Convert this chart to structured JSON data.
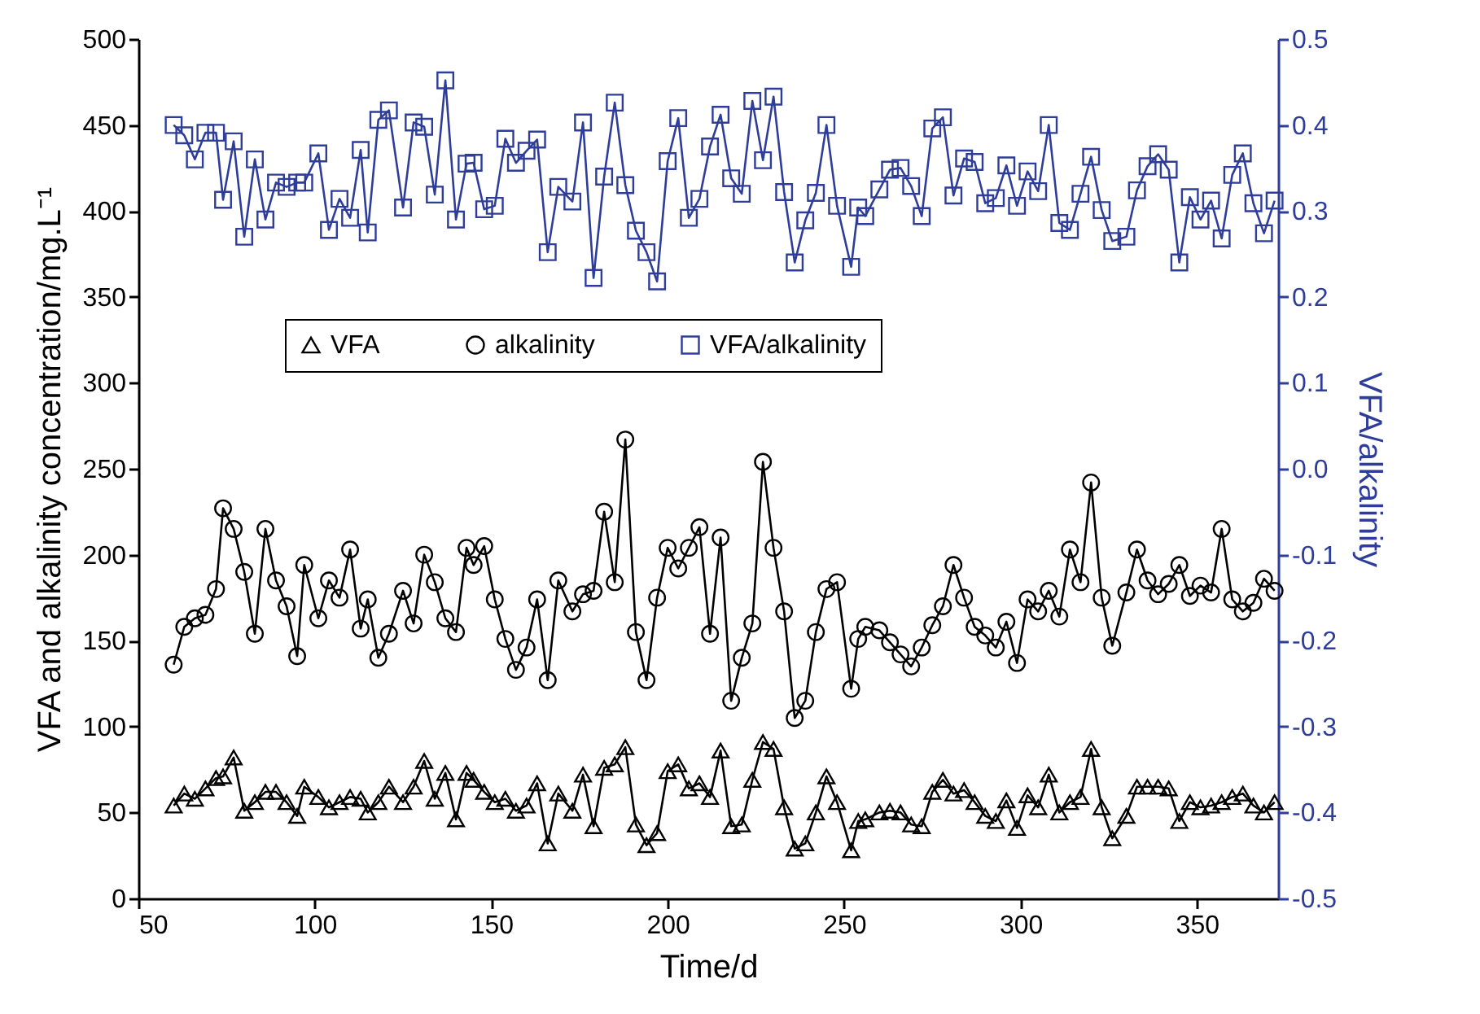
{
  "chart_data": {
    "type": "line",
    "xlabel": "Time/d",
    "ylabel": "VFA and alkalinity concentration/mg.L⁻¹",
    "y2label": "VFA/alkalinity",
    "x": [
      60,
      63,
      66,
      69,
      72,
      74,
      77,
      80,
      83,
      86,
      89,
      92,
      95,
      97,
      101,
      104,
      107,
      110,
      113,
      115,
      118,
      121,
      125,
      128,
      131,
      134,
      137,
      140,
      143,
      145,
      148,
      151,
      154,
      157,
      160,
      163,
      166,
      169,
      173,
      176,
      179,
      182,
      185,
      188,
      191,
      194,
      197,
      200,
      203,
      206,
      209,
      212,
      215,
      218,
      221,
      224,
      227,
      230,
      233,
      236,
      239,
      242,
      245,
      248,
      252,
      254,
      256,
      260,
      263,
      266,
      269,
      272,
      275,
      278,
      281,
      284,
      287,
      290,
      293,
      296,
      299,
      302,
      305,
      308,
      311,
      314,
      317,
      320,
      323,
      326,
      330,
      333,
      336,
      339,
      342,
      345,
      348,
      351,
      354,
      357,
      360,
      363,
      366,
      369,
      372
    ],
    "xlim": [
      50,
      373
    ],
    "xticks": [
      50,
      100,
      150,
      200,
      250,
      300,
      350
    ],
    "ylim": [
      0,
      500
    ],
    "yticks": [
      0,
      50,
      100,
      150,
      200,
      250,
      300,
      350,
      400,
      450,
      500
    ],
    "y2lim": [
      -0.5,
      0.5
    ],
    "y2ticks": [
      -0.5,
      -0.4,
      -0.3,
      -0.2,
      -0.1,
      {
        "value": 0,
        "label": "0.0"
      },
      0.1,
      0.2,
      0.3,
      0.4,
      0.5
    ],
    "legend": "top",
    "grid": false,
    "line_style": "solid",
    "series": [
      {
        "name": "VFA",
        "color": "#000000",
        "marker": "triangle",
        "values": [
          54,
          61,
          58,
          64,
          70,
          71,
          82,
          51,
          56,
          62,
          62,
          56,
          48,
          65,
          59,
          53,
          56,
          59,
          58,
          50,
          56,
          65,
          56,
          65,
          80,
          58,
          73,
          46,
          73,
          69,
          62,
          56,
          58,
          51,
          54,
          67,
          32,
          61,
          51,
          72,
          42,
          76,
          78,
          88,
          43,
          31,
          38,
          74,
          78,
          64,
          67,
          59,
          86,
          42,
          43,
          69,
          91,
          87,
          53,
          29,
          32,
          50,
          71,
          56,
          28,
          45,
          46,
          50,
          51,
          50,
          43,
          42,
          62,
          69,
          61,
          63,
          56,
          48,
          45,
          57,
          41,
          60,
          53,
          72,
          50,
          56,
          59,
          87,
          53,
          35,
          48,
          65,
          65,
          65,
          64,
          45,
          56,
          53,
          54,
          56,
          59,
          61,
          54,
          50,
          56
        ]
      },
      {
        "name": "alkalinity",
        "color": "#000000",
        "marker": "circle",
        "values": [
          136,
          158,
          163,
          165,
          180,
          227,
          215,
          190,
          154,
          215,
          185,
          170,
          141,
          194,
          163,
          185,
          175,
          203,
          157,
          174,
          140,
          154,
          179,
          160,
          200,
          184,
          163,
          155,
          204,
          194,
          205,
          174,
          151,
          133,
          146,
          174,
          127,
          185,
          167,
          177,
          179,
          225,
          184,
          267,
          155,
          127,
          175,
          204,
          192,
          204,
          216,
          154,
          210,
          115,
          140,
          160,
          254,
          204,
          167,
          105,
          115,
          155,
          180,
          184,
          122,
          151,
          158,
          156,
          149,
          142,
          135,
          146,
          159,
          170,
          194,
          175,
          158,
          153,
          146,
          161,
          137,
          174,
          167,
          179,
          164,
          203,
          184,
          242,
          175,
          147,
          178,
          203,
          185,
          177,
          183,
          194,
          176,
          182,
          178,
          215,
          174,
          167,
          172,
          186,
          179
        ]
      },
      {
        "name": "VFA/alkalinity",
        "color": "#2e3d99",
        "marker": "square",
        "axis": "y2",
        "values": [
          0.4,
          0.388,
          0.36,
          0.391,
          0.391,
          0.313,
          0.381,
          0.27,
          0.36,
          0.29,
          0.333,
          0.328,
          0.333,
          0.333,
          0.367,
          0.278,
          0.314,
          0.292,
          0.371,
          0.275,
          0.406,
          0.417,
          0.304,
          0.403,
          0.398,
          0.319,
          0.452,
          0.29,
          0.355,
          0.356,
          0.302,
          0.306,
          0.384,
          0.356,
          0.37,
          0.383,
          0.252,
          0.328,
          0.311,
          0.403,
          0.222,
          0.34,
          0.426,
          0.33,
          0.277,
          0.252,
          0.218,
          0.358,
          0.408,
          0.292,
          0.314,
          0.375,
          0.412,
          0.338,
          0.32,
          0.428,
          0.359,
          0.433,
          0.322,
          0.24,
          0.289,
          0.321,
          0.4,
          0.306,
          0.235,
          0.304,
          0.294,
          0.325,
          0.348,
          0.35,
          0.329,
          0.294,
          0.396,
          0.409,
          0.318,
          0.361,
          0.357,
          0.309,
          0.315,
          0.353,
          0.306,
          0.346,
          0.323,
          0.4,
          0.286,
          0.278,
          0.32,
          0.363,
          0.301,
          0.265,
          0.27,
          0.324,
          0.352,
          0.366,
          0.348,
          0.24,
          0.316,
          0.29,
          0.312,
          0.268,
          0.342,
          0.367,
          0.309,
          0.274,
          0.312
        ]
      }
    ]
  }
}
